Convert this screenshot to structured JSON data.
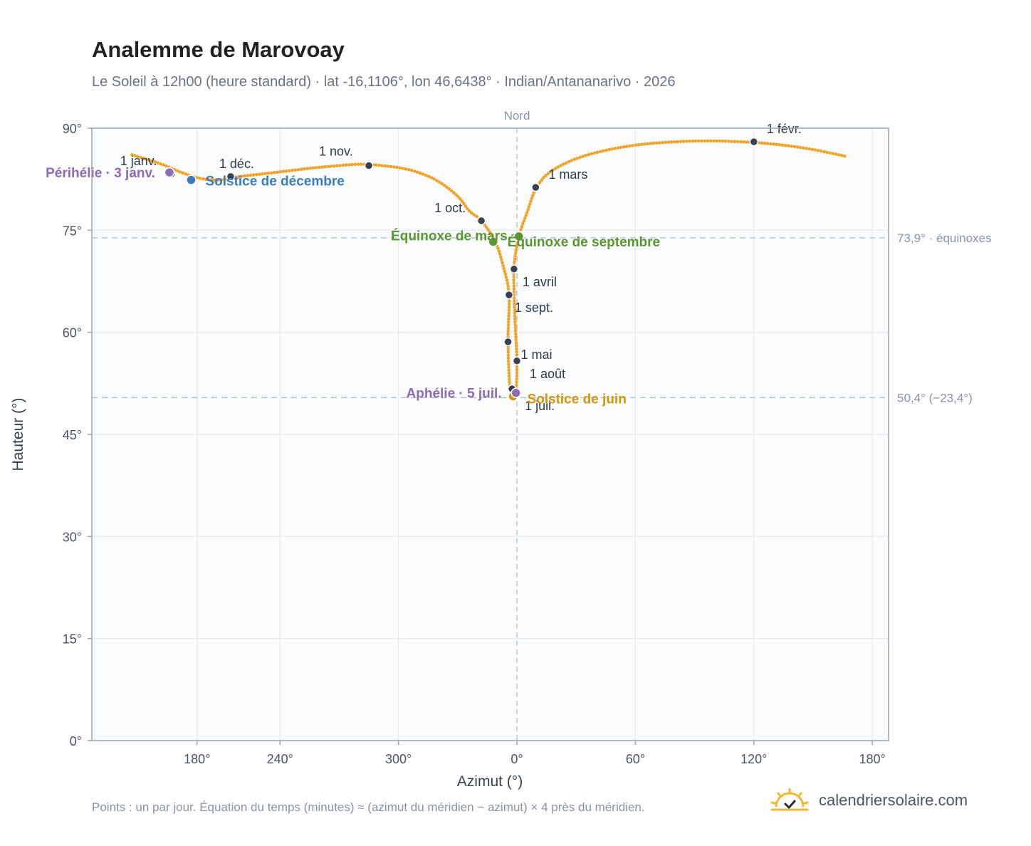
{
  "header": {
    "title": "Analemme de Marovoay",
    "subtitle": "Le Soleil à 12h00 (heure standard) · lat -16,1106°, lon 46,6438° · Indian/Antananarivo · 2026"
  },
  "footer": {
    "note": "Points : un par jour. Équation du temps (minutes) ≈ (azimut du méridien − azimut) × 4 près du méridien.",
    "brand": "calendriersolaire.com",
    "brand_icon": "sun-check-icon"
  },
  "colors": {
    "curve": "#f0a42a",
    "month_marker": "#374151",
    "solstice_december": "#3b7bbf",
    "solstice_june": "#d49510",
    "equinox": "#5a9632",
    "apsis": "#8e6bb8",
    "plot_background": "#fafcfd",
    "grid": "#e6e9ee",
    "reference_line": "#b8c4cc"
  },
  "chart_data": {
    "type": "scatter",
    "xlabel": "Azimut (°)",
    "ylabel": "Hauteur (°)",
    "xaxis": {
      "description": "Azimut centré sur le nord (0°), axe continu de 150° à 180° en passant par 0°",
      "range_offset": [
        -180,
        157
      ],
      "ticks": [
        {
          "offset": -162,
          "label": "180°"
        },
        {
          "offset": -120,
          "label": "240°"
        },
        {
          "offset": -60,
          "label": "300°"
        },
        {
          "offset": 0,
          "label": "0°"
        },
        {
          "offset": 60,
          "label": "60°"
        },
        {
          "offset": 120,
          "label": "120°"
        },
        {
          "offset": 180,
          "label": "180°"
        }
      ]
    },
    "ylim": [
      0,
      90
    ],
    "yticks": [
      0,
      15,
      30,
      45,
      60,
      75,
      90
    ],
    "ytick_labels": [
      "0°",
      "15°",
      "30°",
      "45°",
      "60°",
      "75°",
      "90°"
    ],
    "grid": true,
    "north_label": "Nord",
    "reference_lines": [
      {
        "y": 73.9,
        "label": "73,9° · équinoxes"
      },
      {
        "y": 50.4,
        "label": "50,4° (−23,4°)"
      }
    ],
    "curve_points": [
      {
        "x": -195,
        "y": 86.1
      },
      {
        "x": -180,
        "y": 84.7
      },
      {
        "x": -170,
        "y": 83.5
      },
      {
        "x": -160,
        "y": 82.6
      },
      {
        "x": -150,
        "y": 82.4
      },
      {
        "x": -140,
        "y": 82.9
      },
      {
        "x": -125,
        "y": 83.4
      },
      {
        "x": -105,
        "y": 84.1
      },
      {
        "x": -90,
        "y": 84.5
      },
      {
        "x": -80,
        "y": 84.7
      },
      {
        "x": -72,
        "y": 84.6
      },
      {
        "x": -60,
        "y": 84.2
      },
      {
        "x": -50,
        "y": 83.5
      },
      {
        "x": -40,
        "y": 82.2
      },
      {
        "x": -30,
        "y": 80.0
      },
      {
        "x": -24,
        "y": 77.8
      },
      {
        "x": -18,
        "y": 76.4
      },
      {
        "x": -11,
        "y": 73.3
      },
      {
        "x": -7,
        "y": 69.8
      },
      {
        "x": -4,
        "y": 65.5
      },
      {
        "x": -4.5,
        "y": 58.6
      },
      {
        "x": -3.5,
        "y": 51.6
      },
      {
        "x": -2,
        "y": 50.6
      },
      {
        "x": -0.5,
        "y": 51.1
      },
      {
        "x": 0,
        "y": 55.8
      },
      {
        "x": -1,
        "y": 62.0
      },
      {
        "x": -1.5,
        "y": 69.3
      },
      {
        "x": 1,
        "y": 74.0
      },
      {
        "x": 5,
        "y": 77.5
      },
      {
        "x": 10,
        "y": 81.3
      },
      {
        "x": 18,
        "y": 83.8
      },
      {
        "x": 35,
        "y": 86.0
      },
      {
        "x": 60,
        "y": 87.5
      },
      {
        "x": 90,
        "y": 88.1
      },
      {
        "x": 120,
        "y": 87.9
      },
      {
        "x": 145,
        "y": 87.1
      },
      {
        "x": 166,
        "y": 85.9
      }
    ],
    "month_markers": [
      {
        "label": "1 janv.",
        "x": -175,
        "y": 83.3
      },
      {
        "label": "1 févr.",
        "x": 120,
        "y": 88.0
      },
      {
        "label": "1 mars",
        "x": 9.5,
        "y": 81.3
      },
      {
        "label": "1 avril",
        "x": -1.5,
        "y": 69.3
      },
      {
        "label": "1 mai",
        "x": -4.5,
        "y": 58.6
      },
      {
        "label": "1 juil.",
        "x": -2.5,
        "y": 51.7
      },
      {
        "label": "1 août",
        "x": 0,
        "y": 55.8
      },
      {
        "label": "1 sept.",
        "x": -4,
        "y": 65.5
      },
      {
        "label": "1 oct.",
        "x": -18,
        "y": 76.4
      },
      {
        "label": "1 nov.",
        "x": -75,
        "y": 84.5
      },
      {
        "label": "1 déc.",
        "x": -145,
        "y": 82.9
      }
    ],
    "events": [
      {
        "label": "Solstice de décembre",
        "x": -165,
        "y": 82.4,
        "kind": "solstice_december"
      },
      {
        "label": "Solstice de juin",
        "x": -2,
        "y": 50.6,
        "kind": "solstice_june"
      },
      {
        "label": "Équinoxe de mars",
        "x": -12,
        "y": 73.3,
        "kind": "equinox"
      },
      {
        "label": "Équinoxe de septembre",
        "x": 1,
        "y": 74.1,
        "kind": "equinox"
      },
      {
        "label": "Périhélie · 3 janv.",
        "x": -176,
        "y": 83.5,
        "kind": "apsis"
      },
      {
        "label": "Aphélie · 5 juil.",
        "x": -0.5,
        "y": 51.1,
        "kind": "apsis"
      }
    ]
  }
}
